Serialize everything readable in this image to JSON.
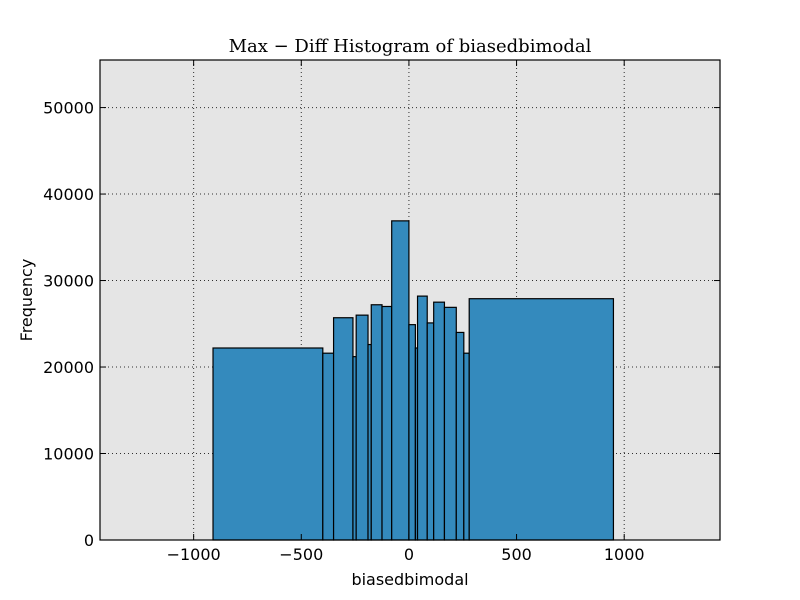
{
  "chart_data": {
    "type": "bar",
    "title": "Max − Diff Histogram of biasedbimodal",
    "xlabel": "biasedbimodal",
    "ylabel": "Frequency",
    "xlim": [
      -1435,
      1445
    ],
    "ylim": [
      0,
      55500
    ],
    "x_ticks": [
      -1000,
      -500,
      0,
      500,
      1000
    ],
    "x_tick_labels": [
      "−1000",
      "−500",
      "0",
      "500",
      "1000"
    ],
    "y_ticks": [
      0,
      10000,
      20000,
      30000,
      40000,
      50000
    ],
    "y_tick_labels": [
      "0",
      "10000",
      "20000",
      "30000",
      "40000",
      "50000"
    ],
    "grid": true,
    "bar_color": "#348abd",
    "edge_color": "#000000",
    "plot_background": "#e5e5e5",
    "bins": [
      {
        "left": -910,
        "right": -400,
        "value": 22200
      },
      {
        "left": -400,
        "right": -350,
        "value": 21600
      },
      {
        "left": -350,
        "right": -260,
        "value": 25700
      },
      {
        "left": -260,
        "right": -245,
        "value": 21200
      },
      {
        "left": -245,
        "right": -190,
        "value": 26000
      },
      {
        "left": -190,
        "right": -175,
        "value": 22600
      },
      {
        "left": -175,
        "right": -125,
        "value": 27200
      },
      {
        "left": -125,
        "right": -80,
        "value": 27000
      },
      {
        "left": -80,
        "right": 0,
        "value": 36900
      },
      {
        "left": 0,
        "right": 30,
        "value": 24900
      },
      {
        "left": 30,
        "right": 40,
        "value": 22200
      },
      {
        "left": 40,
        "right": 85,
        "value": 28200
      },
      {
        "left": 85,
        "right": 115,
        "value": 25100
      },
      {
        "left": 115,
        "right": 165,
        "value": 27500
      },
      {
        "left": 165,
        "right": 220,
        "value": 26900
      },
      {
        "left": 220,
        "right": 255,
        "value": 24000
      },
      {
        "left": 255,
        "right": 280,
        "value": 21600
      },
      {
        "left": 280,
        "right": 950,
        "value": 27900
      }
    ]
  }
}
